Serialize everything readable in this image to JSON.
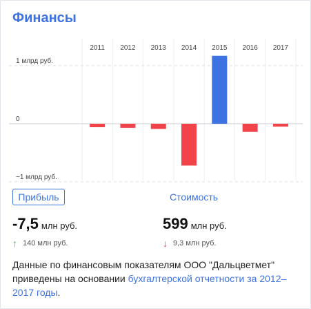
{
  "header": {
    "title": "Финансы"
  },
  "chart_data": {
    "type": "bar",
    "categories": [
      "2011",
      "2012",
      "2013",
      "2014",
      "2015",
      "2016",
      "2017"
    ],
    "values": [
      -0.06,
      -0.07,
      -0.09,
      -0.72,
      1.17,
      -0.14,
      -0.05
    ],
    "unit": "млрд руб.",
    "y_tick_labels": [
      "1 млрд руб.",
      "0",
      "−1 млрд руб."
    ],
    "y_tick_values": [
      1,
      0,
      -1
    ],
    "ylim": [
      -1.05,
      1.2
    ],
    "grid": true,
    "colors": {
      "positive": "#3d72e3",
      "negative": "#f2434a"
    }
  },
  "controls": {
    "profit_label": "Прибыль",
    "cost_label": "Стоимость"
  },
  "metrics": {
    "profit": {
      "value": "-7,5",
      "unit": "млн руб.",
      "change": "140 млн руб.",
      "direction": "up"
    },
    "cost": {
      "value": "599",
      "unit": "млн руб.",
      "change": "9,3 млн руб.",
      "direction": "down"
    }
  },
  "footnote": {
    "text": "Данные по финансовым показателям ООО \"Дальцветмет\" приведены на основании ",
    "link": "бухгалтерской отчетности за 2012–2017 годы",
    "end": "."
  },
  "icons": {
    "up": "arrow-up-icon",
    "down": "arrow-down-icon"
  }
}
